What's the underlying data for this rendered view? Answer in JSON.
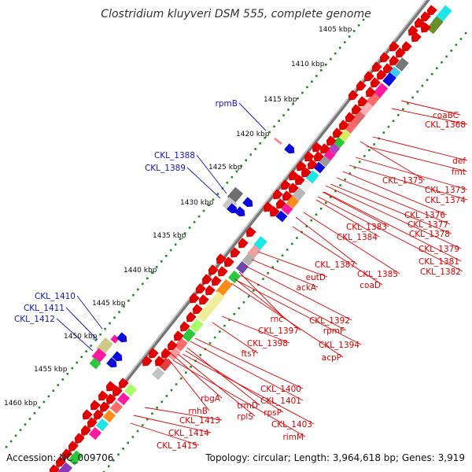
{
  "map": {
    "title": "Clostridium kluyveri DSM 555, complete genome",
    "accession": "Accession: NC_009706",
    "topology": "Topology: circular; Length: 3,964,618 bp; Genes: 3,919",
    "colors": {
      "forward_strand": "#e00000",
      "reverse_strand": "#0a0adc",
      "forward_label": "#e00000",
      "reverse_label": "#1414cc",
      "backbone": "#888888",
      "gc_ticks": "#1e8c1e"
    }
  },
  "ruler": {
    "ticks": [
      {
        "label": "1405 kbp"
      },
      {
        "label": "1410 kbp"
      },
      {
        "label": "1415 kbp"
      },
      {
        "label": "1420 kbp"
      },
      {
        "label": "1425 kbp"
      },
      {
        "label": "1430 kbp"
      },
      {
        "label": "1435 kbp"
      },
      {
        "label": "1440 kbp"
      },
      {
        "label": "1445 kbp"
      },
      {
        "label": "1450 kbp"
      },
      {
        "label": "1455 kbp"
      },
      {
        "label": "1460 kbp"
      }
    ]
  },
  "genes": {
    "reverse_strand": [
      "rpmB",
      "CKL_1388",
      "CKL_1389",
      "CKL_1410",
      "CKL_1411",
      "CKL_1412"
    ],
    "forward_strand": [
      "coaBC",
      "CKL_1368",
      "def",
      "fmt",
      "CKL_1373",
      "CKL_1374",
      "CKL_1375",
      "CKL_1376",
      "CKL_1377",
      "CKL_1378",
      "CKL_1379",
      "CKL_1381",
      "CKL_1382",
      "CKL_1383",
      "CKL_1384",
      "CKL_1385",
      "CKL_1387",
      "coaD",
      "eutD",
      "ackA",
      "rnc",
      "CKL_1392",
      "CKL_1397",
      "rpmF",
      "CKL_1394",
      "CKL_1398",
      "acpP",
      "ftsY",
      "CKL_1400",
      "CKL_1401",
      "rbgA",
      "trmD",
      "rpsP",
      "CKL_1403",
      "rnhB",
      "rplS",
      "rimM",
      "CKL_1413",
      "CKL_1414",
      "CKL_1415"
    ]
  }
}
